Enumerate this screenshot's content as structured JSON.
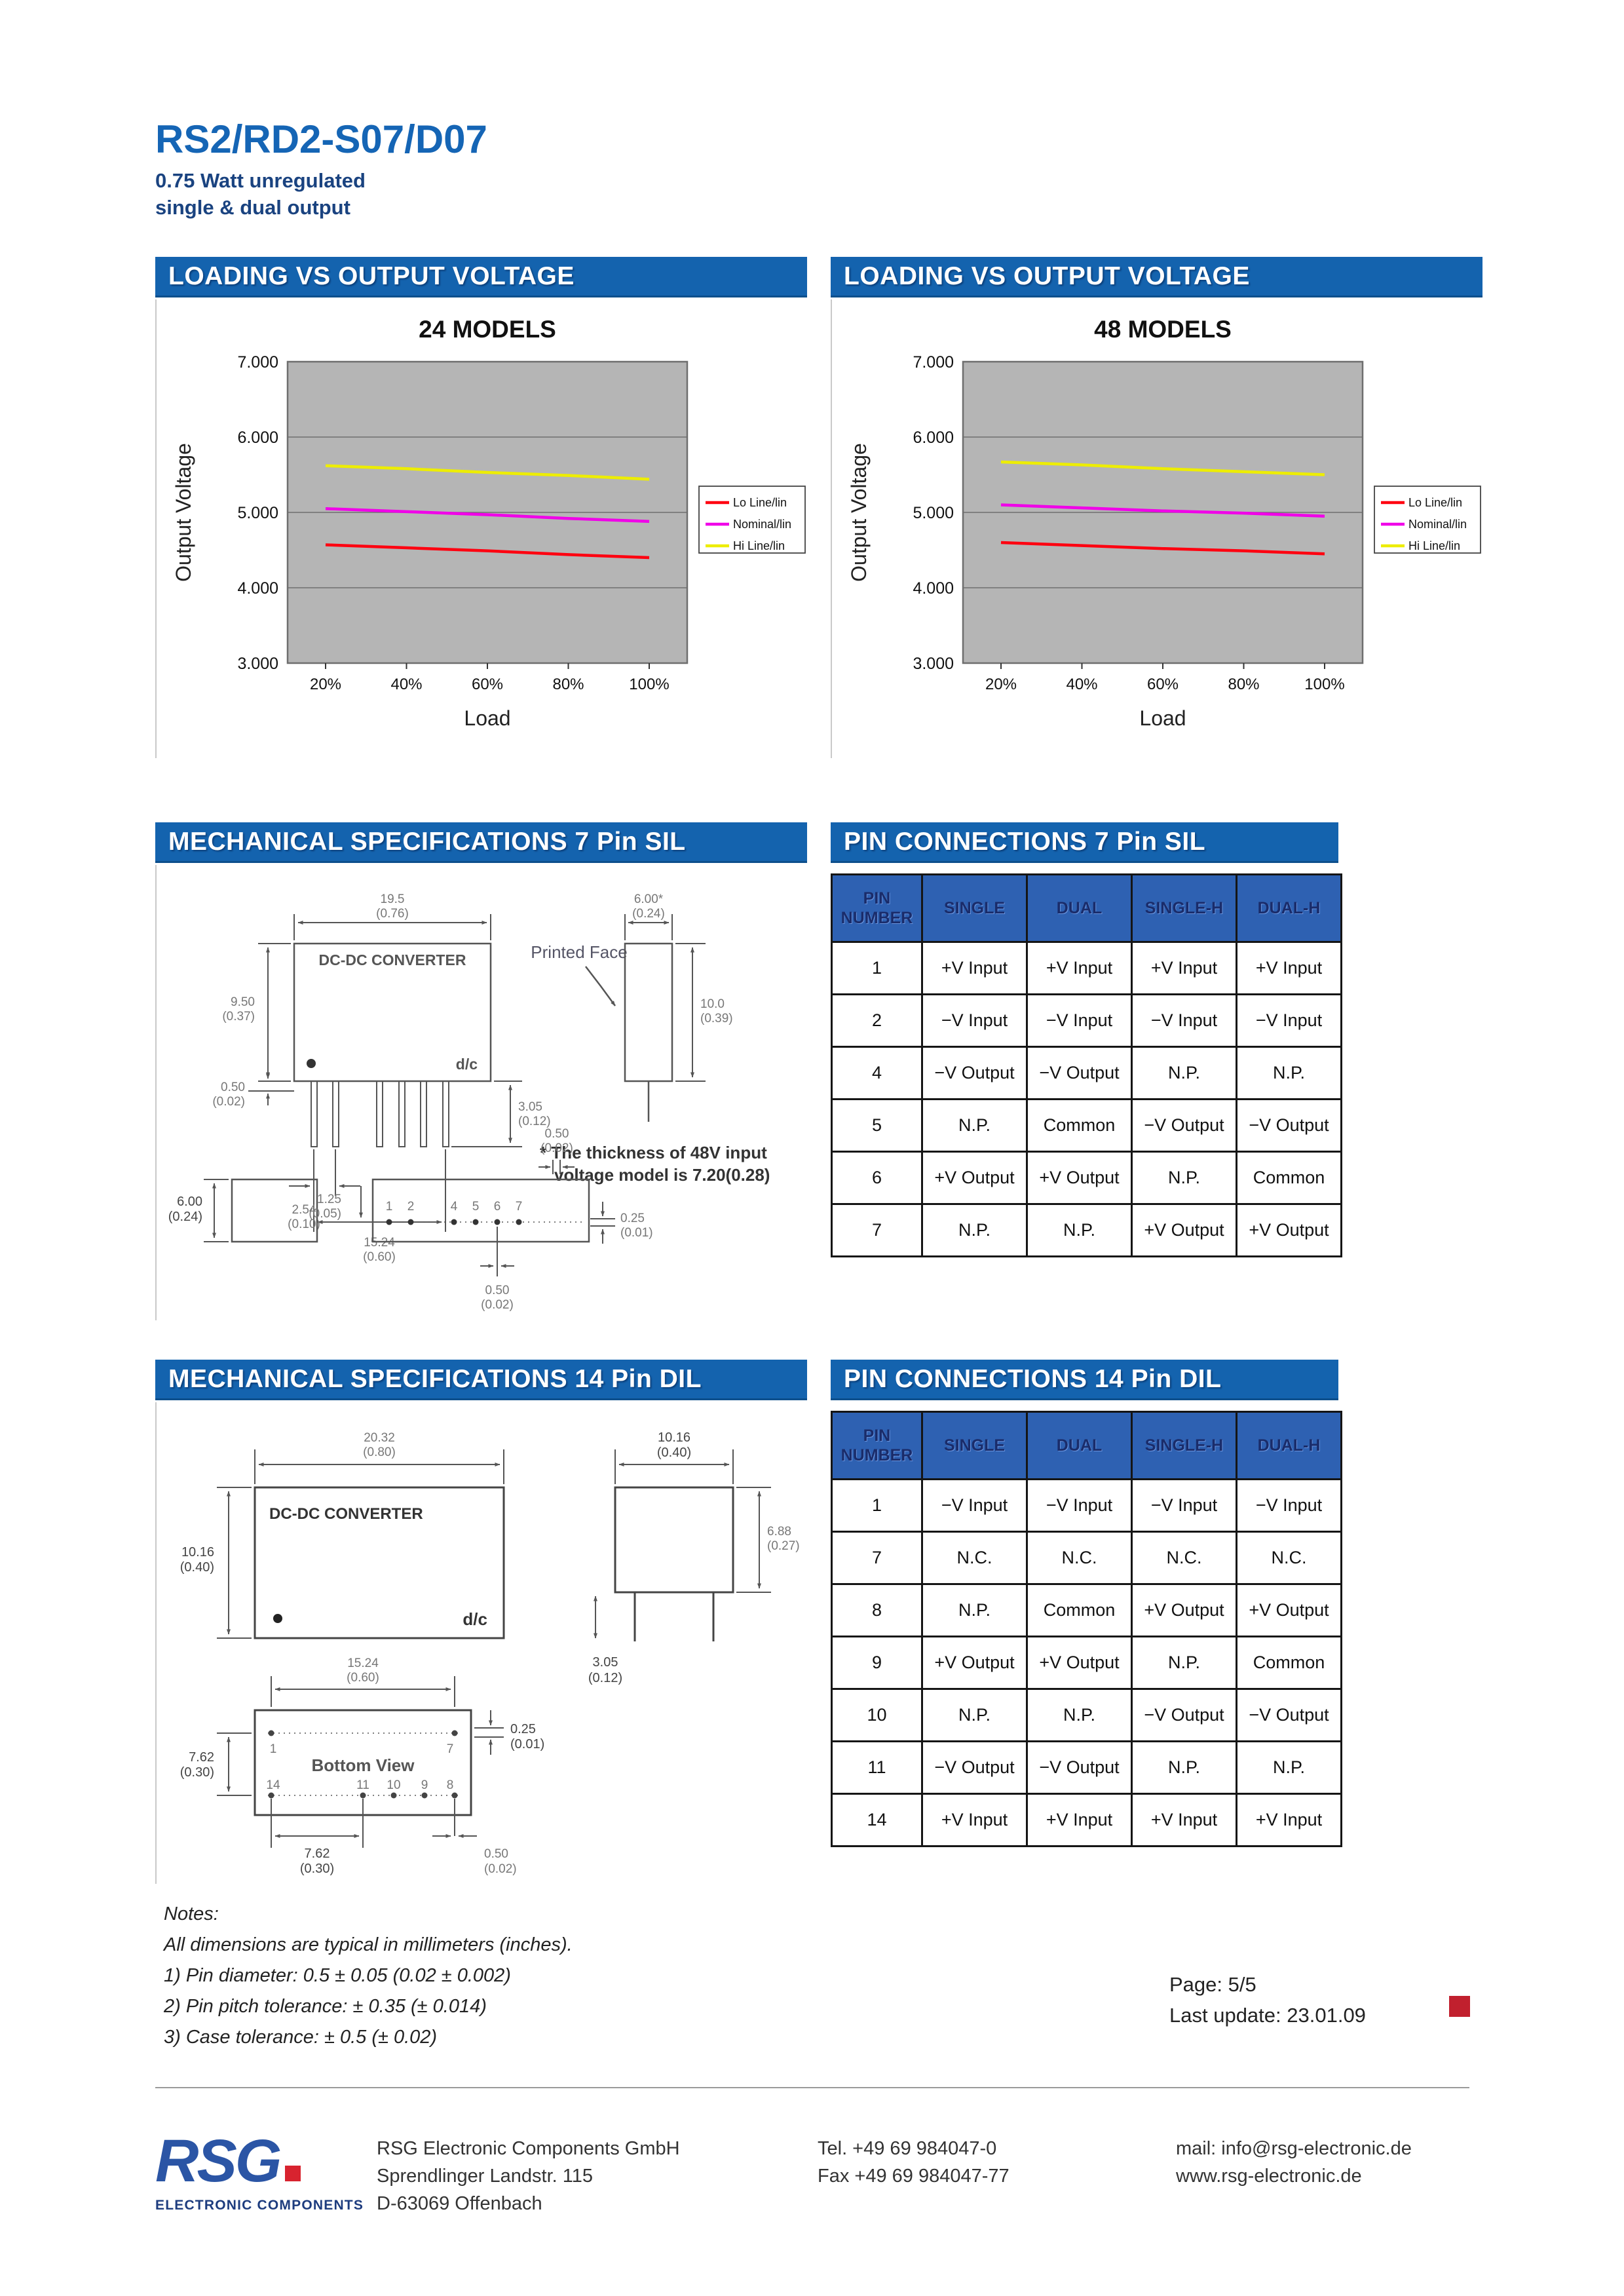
{
  "page": {
    "title": "RS2/RD2-S07/D07",
    "subtitle1": "0.75 Watt unregulated",
    "subtitle2": "single & dual output",
    "page_label": "Page: 5/5",
    "last_update": "Last update: 23.01.09"
  },
  "colors": {
    "header_bar_blue": "#1463ae",
    "table_header_blue": "#2e61b2",
    "plot_background": "#b5b5b5",
    "lo_line": "#ff0010",
    "nominal_line": "#f000e8",
    "hi_line": "#eded00",
    "accent_red_square": "#c1202e"
  },
  "charts": {
    "header": "LOADING VS OUTPUT VOLTAGE"
  },
  "chart_data": [
    {
      "type": "line",
      "title": "24 MODELS",
      "x": [
        "20%",
        "40%",
        "60%",
        "80%",
        "100%"
      ],
      "xlabel": "Load",
      "ylabel": "Output Voltage",
      "ylim": [
        3,
        7
      ],
      "yticks": [
        "7.000",
        "6.000",
        "5.000",
        "4.000",
        "3.000"
      ],
      "grid": true,
      "legend_position": "right",
      "series": [
        {
          "name": "Lo Line/lin",
          "color": "#ff0010",
          "values": [
            4.57,
            4.53,
            4.49,
            4.44,
            4.4
          ]
        },
        {
          "name": "Nominal/lin",
          "color": "#f000e8",
          "values": [
            5.05,
            5.01,
            4.97,
            4.92,
            4.88
          ]
        },
        {
          "name": "Hi Line/lin",
          "color": "#eded00",
          "values": [
            5.62,
            5.58,
            5.53,
            5.49,
            5.44
          ]
        }
      ]
    },
    {
      "type": "line",
      "title": "48 MODELS",
      "x": [
        "20%",
        "40%",
        "60%",
        "80%",
        "100%"
      ],
      "xlabel": "Load",
      "ylabel": "Output Voltage",
      "ylim": [
        3,
        7
      ],
      "yticks": [
        "7.000",
        "6.000",
        "5.000",
        "4.000",
        "3.000"
      ],
      "grid": true,
      "legend_position": "right",
      "series": [
        {
          "name": "Lo Line/lin",
          "color": "#ff0010",
          "values": [
            4.6,
            4.56,
            4.52,
            4.49,
            4.45
          ]
        },
        {
          "name": "Nominal/lin",
          "color": "#f000e8",
          "values": [
            5.1,
            5.06,
            5.02,
            4.99,
            4.95
          ]
        },
        {
          "name": "Hi Line/lin",
          "color": "#eded00",
          "values": [
            5.67,
            5.63,
            5.58,
            5.54,
            5.5
          ]
        }
      ]
    }
  ],
  "sections": {
    "mech7_title": "MECHANICAL SPECIFICATIONS 7 Pin SIL",
    "pin7_title": "PIN CONNECTIONS 7 Pin SIL",
    "mech14_title": "MECHANICAL SPECIFICATIONS 14 Pin DIL",
    "pin14_title": "PIN CONNECTIONS 14 Pin DIL"
  },
  "mech7": {
    "front": {
      "label": "DC-DC CONVERTER",
      "corner_mark": "d/c",
      "dims": {
        "width": [
          "19.5",
          "(0.76)"
        ],
        "height": [
          "9.50",
          "(0.37)"
        ],
        "standoff": [
          "0.50",
          "(0.02)"
        ],
        "pitch": [
          "2.54",
          "(0.10)"
        ],
        "span": [
          "15.24",
          "(0.60)"
        ],
        "pin_length": [
          "3.05",
          "(0.12)"
        ]
      }
    },
    "side": {
      "label": "Printed Face",
      "dims": {
        "width": [
          "6.00*",
          "(0.24)"
        ],
        "height": [
          "10.0",
          "(0.39)"
        ]
      }
    },
    "note_line1": "* The thickness of 48V input",
    "note_line2": "voltage model is 7.20(0.28)",
    "bottom": {
      "dims": {
        "height": [
          "6.00",
          "(0.24)"
        ],
        "offset": [
          "1.25",
          "(0.05)"
        ],
        "pin_width": [
          "0.50",
          "(0.02)"
        ],
        "pin_thickness": [
          "0.25",
          "(0.01)"
        ],
        "pin_diameter": [
          "0.50",
          "(0.02)"
        ]
      },
      "pins": [
        "1",
        "2",
        "4",
        "5",
        "6",
        "7"
      ]
    }
  },
  "pin7": {
    "headers": [
      "PIN NUMBER",
      "SINGLE",
      "DUAL",
      "SINGLE-H",
      "DUAL-H"
    ],
    "rows": [
      [
        "1",
        "+V Input",
        "+V Input",
        "+V Input",
        "+V Input"
      ],
      [
        "2",
        "−V Input",
        "−V Input",
        "−V Input",
        "−V Input"
      ],
      [
        "4",
        "−V Output",
        "−V Output",
        "N.P.",
        "N.P."
      ],
      [
        "5",
        "N.P.",
        "Common",
        "−V Output",
        "−V Output"
      ],
      [
        "6",
        "+V Output",
        "+V Output",
        "N.P.",
        "Common"
      ],
      [
        "7",
        "N.P.",
        "N.P.",
        "+V Output",
        "+V Output"
      ]
    ]
  },
  "mech14": {
    "top": {
      "label": "DC-DC CONVERTER",
      "corner_mark": "d/c",
      "dims": {
        "width": [
          "20.32",
          "(0.80)"
        ],
        "height": [
          "10.16",
          "(0.40)"
        ]
      }
    },
    "side": {
      "dims": {
        "width": [
          "10.16",
          "(0.40)"
        ],
        "height": [
          "6.88",
          "(0.27)"
        ],
        "pin_length": [
          "3.05",
          "(0.12)"
        ]
      }
    },
    "bottom": {
      "label": "Bottom View",
      "dims": {
        "span": [
          "15.24",
          "(0.60)"
        ],
        "height": [
          "7.62",
          "(0.30)"
        ],
        "pin_thickness": [
          "0.25",
          "(0.01)"
        ],
        "pitch": [
          "7.62",
          "(0.30)"
        ],
        "pin_diameter": [
          "0.50",
          "(0.02)"
        ]
      },
      "pins_top": [
        "1",
        "7"
      ],
      "pins_bottom": [
        "14",
        "11",
        "10",
        "9",
        "8"
      ]
    }
  },
  "pin14": {
    "headers": [
      "PIN NUMBER",
      "SINGLE",
      "DUAL",
      "SINGLE-H",
      "DUAL-H"
    ],
    "rows": [
      [
        "1",
        "−V Input",
        "−V Input",
        "−V Input",
        "−V Input"
      ],
      [
        "7",
        "N.C.",
        "N.C.",
        "N.C.",
        "N.C."
      ],
      [
        "8",
        "N.P.",
        "Common",
        "+V Output",
        "+V Output"
      ],
      [
        "9",
        "+V Output",
        "+V Output",
        "N.P.",
        "Common"
      ],
      [
        "10",
        "N.P.",
        "N.P.",
        "−V Output",
        "−V Output"
      ],
      [
        "11",
        "−V Output",
        "−V Output",
        "N.P.",
        "N.P."
      ],
      [
        "14",
        "+V Input",
        "+V Input",
        "+V Input",
        "+V Input"
      ]
    ]
  },
  "notes": {
    "title": "Notes:",
    "lines": [
      "All dimensions are typical in millimeters (inches).",
      "1)  Pin diameter: 0.5 ± 0.05 (0.02 ± 0.002)",
      "2)  Pin pitch tolerance: ± 0.35 (± 0.014)",
      "3)  Case tolerance: ± 0.5 (± 0.02)"
    ]
  },
  "footer": {
    "logo_text": "RSG",
    "logo_sub": "ELECTRONIC COMPONENTS",
    "address": [
      "RSG Electronic Components GmbH",
      "Sprendlinger Landstr. 115",
      "D-63069 Offenbach"
    ],
    "phone": [
      "Tel. +49 69 984047-0",
      "Fax +49 69 984047-77"
    ],
    "web": [
      "mail: info@rsg-electronic.de",
      "www.rsg-electronic.de"
    ]
  }
}
